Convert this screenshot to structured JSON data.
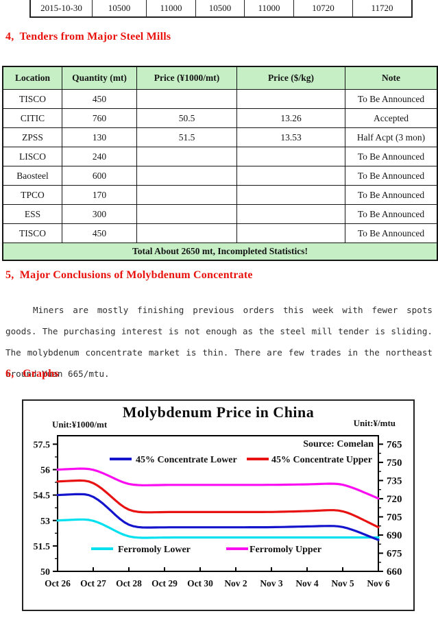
{
  "colors": {
    "heading_red": "#E8110B",
    "table_green": "#C6EFC6",
    "border_black": "#141414"
  },
  "top_table": {
    "rows": [
      [
        "2015-10-30",
        "10500",
        "11000",
        "10500",
        "11000",
        "10720",
        "11720"
      ]
    ]
  },
  "section4": {
    "heading": "4,  Tenders from Major Steel Mills"
  },
  "tender_table": {
    "headers": [
      "Location",
      "Quantity (mt)",
      "Price (¥1000/mt)",
      "Price ($/kg)",
      "Note"
    ],
    "rows": [
      [
        "TISCO",
        "450",
        "",
        "",
        "To Be Announced"
      ],
      [
        "CITIC",
        "760",
        "50.5",
        "13.26",
        "Accepted"
      ],
      [
        "ZPSS",
        "130",
        "51.5",
        "13.53",
        "Half Acpt (3 mon)"
      ],
      [
        "LISCO",
        "240",
        "",
        "",
        "To Be Announced"
      ],
      [
        "Baosteel",
        "600",
        "",
        "",
        "To Be Announced"
      ],
      [
        "TPCO",
        "170",
        "",
        "",
        "To Be Announced"
      ],
      [
        "ESS",
        "300",
        "",
        "",
        "To Be Announced"
      ],
      [
        "TISCO",
        "450",
        "",
        "",
        "To Be Announced"
      ]
    ],
    "footer": "Total About 2650 mt, Incompleted Statistics!"
  },
  "section5": {
    "heading": "5,  Major Conclusions of Molybdenum Concentrate",
    "paragraph": "Miners are mostly finishing previous orders this week with fewer spots goods. The purchasing interest is not enough as the steel mill tender is sliding. The molybdenum concentrate market is thin. There are few trades in the northeast around Yuan 665/mtu."
  },
  "section6": {
    "heading": "6,   Graphs"
  },
  "chart_data": {
    "type": "line",
    "title": "Molybdenum Price in China",
    "unit_left": "Unit:¥1000/mt",
    "unit_right": "Unit:¥/mtu",
    "source": "Source: Comelan",
    "legend_position": "inside",
    "grid": false,
    "categories": [
      "Oct 26",
      "Oct 27",
      "Oct 28",
      "Oct 29",
      "Oct 30",
      "Nov 2",
      "Nov 3",
      "Nov 4",
      "Nov 5",
      "Nov 6"
    ],
    "left_axis": {
      "label": "¥1000/mt",
      "ticks": [
        "57.5",
        "56",
        "54.5",
        "53",
        "51.5",
        "50"
      ],
      "range": [
        50,
        58
      ]
    },
    "right_axis": {
      "label": "¥/mtu",
      "ticks": [
        "765",
        "750",
        "735",
        "720",
        "705",
        "690",
        "675",
        "660"
      ],
      "range": [
        660,
        772
      ]
    },
    "series": [
      {
        "name": "Ferromoly Lower",
        "axis": "right",
        "color": "#00E0EE",
        "values": [
          702,
          703.4,
          687.3,
          688,
          688,
          688,
          688,
          688,
          688,
          688
        ]
      },
      {
        "name": "Ferromoly Upper",
        "axis": "right",
        "color": "#FB0DF2",
        "values": [
          744,
          745.4,
          730.7,
          731.4,
          731.4,
          731.4,
          731.4,
          731.8,
          732.8,
          720.2
        ]
      },
      {
        "name": "45% Concentrate Upper",
        "axis": "left",
        "color": "#E81212",
        "values": [
          55.3,
          55.4,
          53.45,
          53.5,
          53.5,
          53.5,
          53.5,
          53.55,
          53.65,
          52.6
        ]
      },
      {
        "name": "45% Concentrate Lower",
        "axis": "left",
        "color": "#1414CC",
        "values": [
          54.5,
          54.6,
          52.55,
          52.6,
          52.6,
          52.6,
          52.6,
          52.65,
          52.7,
          51.85
        ]
      }
    ]
  }
}
